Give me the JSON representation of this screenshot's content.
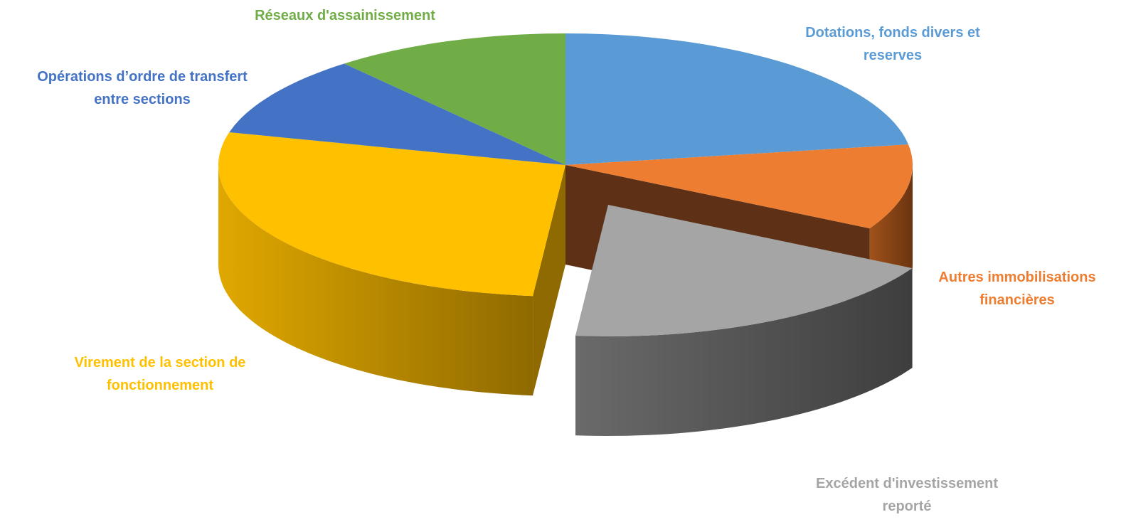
{
  "chart_data": {
    "type": "pie",
    "style": "3d-exploded",
    "legend": "none",
    "slices": [
      {
        "label_lines": [
          "Dotations, fonds divers et",
          "reserves"
        ],
        "value": 22.5,
        "color": "#5b9bd5",
        "side_color": "#3f6f9c"
      },
      {
        "label_lines": [
          "Autres immobilisations",
          "financières"
        ],
        "value": 10.5,
        "color": "#ed7d31",
        "side_color": "#a7531b"
      },
      {
        "label_lines": [
          "Excédent d'investissement",
          "reporté"
        ],
        "value": 18.5,
        "color": "#a5a5a5",
        "side_color": "#505050",
        "exploded": true
      },
      {
        "label_lines": [
          "Virement de la section de",
          "fonctionnement"
        ],
        "value": 27.5,
        "color": "#ffc000",
        "side_color": "#b58400"
      },
      {
        "label_lines": [
          "Opérations d’ordre de transfert",
          "entre sections"
        ],
        "value": 10.0,
        "color": "#4472c4",
        "side_color": "#2f5597"
      },
      {
        "label_lines": [
          "Réseaux d'assainissement"
        ],
        "value": 11.0,
        "color": "#70ad47",
        "side_color": "#4e7a31"
      }
    ]
  }
}
